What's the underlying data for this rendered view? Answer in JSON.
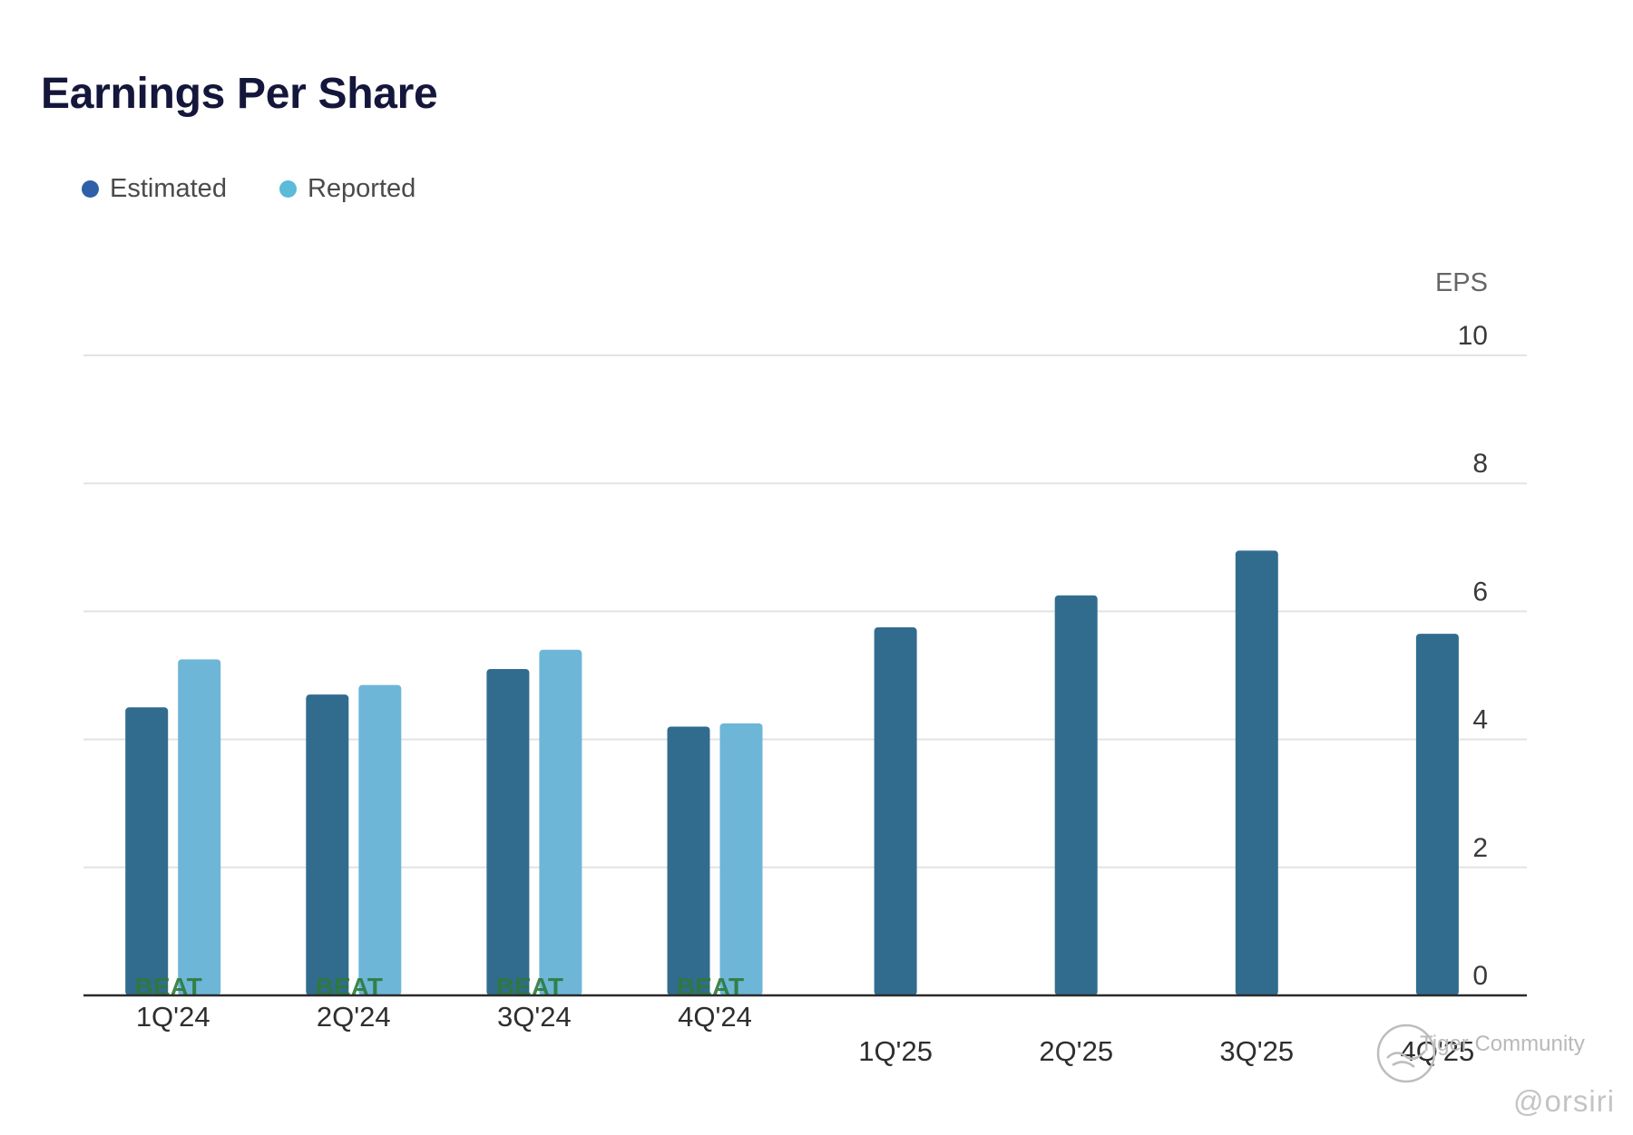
{
  "title": "Earnings Per Share",
  "legend": [
    {
      "name": "Estimated",
      "color": "#2f5fa8"
    },
    {
      "name": "Reported",
      "color": "#5bbbd8"
    }
  ],
  "colors": {
    "estimated_bar": "#316c8f",
    "reported_bar": "#6db6d7",
    "beat_text": "#2d7a3a",
    "grid": "#e3e3e3",
    "baseline": "#2b2b2b"
  },
  "watermark": {
    "community": "Tiger Community",
    "handle": "@orsiri"
  },
  "chart_data": {
    "type": "bar",
    "ylabel": "EPS",
    "ylim": [
      0,
      10
    ],
    "yticks": [
      0,
      2,
      4,
      6,
      8,
      10
    ],
    "grid": true,
    "legend_position": "top-left",
    "categories": [
      "1Q'24",
      "2Q'24",
      "3Q'24",
      "4Q'24",
      "1Q'25",
      "2Q'25",
      "3Q'25",
      "4Q'25"
    ],
    "series": [
      {
        "name": "Estimated",
        "values": [
          4.5,
          4.7,
          5.1,
          4.2,
          5.75,
          6.25,
          6.95,
          5.65
        ]
      },
      {
        "name": "Reported",
        "values": [
          5.25,
          4.85,
          5.4,
          4.25,
          null,
          null,
          null,
          null
        ]
      }
    ],
    "annotations": [
      "BEAT",
      "BEAT",
      "BEAT",
      "BEAT",
      "",
      "",
      "",
      ""
    ]
  }
}
